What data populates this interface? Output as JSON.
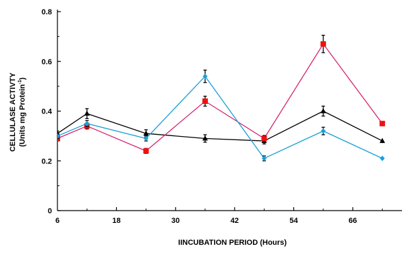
{
  "chart_data": {
    "type": "line",
    "title": "",
    "xlabel": "IINCUBATION PERIOD (Hours)",
    "ylabel_line1": "CELLULASE ACTIVTY",
    "ylabel_line2": "(Units mg Protein",
    "ylabel_sup": "-1",
    "ylabel_close": ")",
    "xlim": [
      6,
      76
    ],
    "ylim": [
      0,
      0.8
    ],
    "x_ticks": [
      6,
      18,
      30,
      42,
      54,
      66
    ],
    "y_ticks": [
      0,
      0.2,
      0.4,
      0.6,
      0.8
    ],
    "x_tick_labels": [
      "6",
      "18",
      "30",
      "42",
      "54",
      "66"
    ],
    "y_tick_labels": [
      "0",
      "0.2",
      "0.4",
      "0.6",
      "0.8"
    ],
    "grid": false,
    "legend": "none",
    "series": [
      {
        "color": "#000000",
        "marker": "triangle",
        "x": [
          6,
          12,
          24,
          36,
          48,
          60,
          72
        ],
        "y": [
          0.31,
          0.39,
          0.31,
          0.29,
          0.28,
          0.4,
          0.28
        ],
        "err": [
          0.01,
          0.02,
          0.015,
          0.015,
          0.012,
          0.02,
          0.0
        ]
      },
      {
        "color": "#d6246e",
        "marker": "square",
        "x": [
          6,
          12,
          24,
          36,
          48,
          60,
          72
        ],
        "y": [
          0.29,
          0.34,
          0.24,
          0.44,
          0.29,
          0.67,
          0.35
        ],
        "err": [
          0.01,
          0.012,
          0.01,
          0.02,
          0.012,
          0.035,
          0.0
        ]
      },
      {
        "color": "#1a9fd6",
        "marker": "diamond",
        "x": [
          6,
          12,
          24,
          36,
          48,
          60,
          72
        ],
        "y": [
          0.3,
          0.35,
          0.29,
          0.54,
          0.21,
          0.32,
          0.21
        ],
        "err": [
          0.01,
          0.012,
          0.01,
          0.025,
          0.01,
          0.015,
          0.0
        ]
      }
    ],
    "marker_colors": {
      "triangle": "#000000",
      "square": "#ee1111",
      "diamond": "#1a9fd6"
    }
  }
}
